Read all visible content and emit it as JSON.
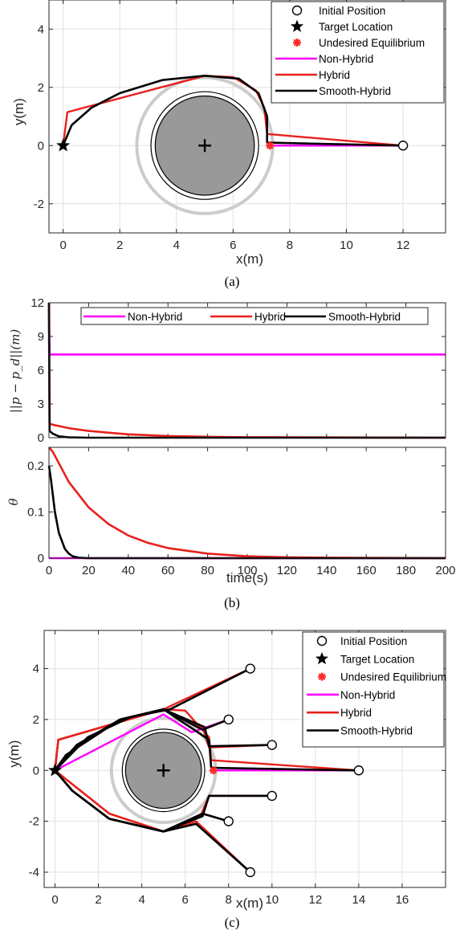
{
  "colors": {
    "nonhybrid": "#ff00ff",
    "hybrid": "#e8201c",
    "smooth": "#000000",
    "obstacle_fill": "#999999",
    "halo": "#cccccc",
    "equilibrium": "#ff2a2a"
  },
  "legend": {
    "initial": "Initial Position",
    "target": "Target Location",
    "undesired": "Undesired Equilibrium",
    "nonhybrid": "Non-Hybrid",
    "hybrid": "Hybrid",
    "smooth": "Smooth-Hybrid"
  },
  "captions": {
    "a": "(a)",
    "b": "(b)",
    "c": "(c)"
  },
  "chart_data": [
    {
      "type": "line",
      "panel": "a",
      "xlabel": "x(m)",
      "ylabel": "y(m)",
      "xlim": [
        -0.5,
        13.5
      ],
      "ylim": [
        -3,
        5
      ],
      "xticks": [
        "0",
        "2",
        "4",
        "6",
        "8",
        "10",
        "12"
      ],
      "yticks": [
        "-2",
        "0",
        "2",
        "4"
      ],
      "obstacle": {
        "center": [
          5,
          0
        ],
        "radius": 1.9,
        "inner_ring": 1.75,
        "halo_radius": 2.4
      },
      "initial_positions": [
        [
          12,
          0
        ]
      ],
      "target": [
        0,
        0
      ],
      "undesired_equilibrium": [
        7.3,
        0
      ],
      "series": [
        {
          "name": "Non-Hybrid",
          "points": [
            [
              12,
              0
            ],
            [
              7.3,
              0
            ]
          ]
        },
        {
          "name": "Hybrid",
          "points": [
            [
              12,
              0
            ],
            [
              7.2,
              0.4
            ],
            [
              7.1,
              1.3
            ],
            [
              6.8,
              1.9
            ],
            [
              6.0,
              2.35
            ],
            [
              5.0,
              2.4
            ],
            [
              0.15,
              1.15
            ],
            [
              0,
              0
            ]
          ]
        },
        {
          "name": "Smooth-Hybrid",
          "points": [
            [
              12,
              0
            ],
            [
              7.2,
              0.1
            ],
            [
              7.2,
              1.0
            ],
            [
              6.9,
              1.8
            ],
            [
              6.2,
              2.3
            ],
            [
              5.0,
              2.4
            ],
            [
              3.5,
              2.25
            ],
            [
              2.0,
              1.8
            ],
            [
              1.0,
              1.3
            ],
            [
              0.3,
              0.7
            ],
            [
              0,
              0
            ]
          ]
        }
      ]
    },
    {
      "type": "line",
      "panel": "b-top",
      "ylabel": "||p − p_d||(m)",
      "xlim": [
        0,
        200
      ],
      "ylim": [
        0,
        12
      ],
      "yticks": [
        "0",
        "3",
        "6",
        "9",
        "12"
      ],
      "series": [
        {
          "name": "Non-Hybrid",
          "x": [
            0,
            0.3,
            200
          ],
          "values": [
            12,
            7.4,
            7.4
          ]
        },
        {
          "name": "Hybrid",
          "x": [
            0,
            0.3,
            2,
            10,
            20,
            40,
            60,
            80,
            100,
            200
          ],
          "values": [
            12,
            1.25,
            1.15,
            0.85,
            0.6,
            0.3,
            0.15,
            0.08,
            0.04,
            0
          ]
        },
        {
          "name": "Smooth-Hybrid",
          "x": [
            0,
            0.3,
            2,
            5,
            10,
            20,
            200
          ],
          "values": [
            12,
            0.6,
            0.35,
            0.12,
            0.03,
            0,
            0
          ]
        }
      ]
    },
    {
      "type": "line",
      "panel": "b-bottom",
      "xlabel": "time(s)",
      "ylabel": "θ",
      "xlim": [
        0,
        200
      ],
      "ylim": [
        0,
        0.24
      ],
      "xticks": [
        "0",
        "20",
        "40",
        "60",
        "80",
        "100",
        "120",
        "140",
        "160",
        "180",
        "200"
      ],
      "yticks": [
        "0",
        "0.1",
        "0.2"
      ],
      "series": [
        {
          "name": "Non-Hybrid",
          "x": [
            0,
            200
          ],
          "values": [
            0,
            0
          ]
        },
        {
          "name": "Hybrid",
          "x": [
            0,
            2,
            10,
            20,
            30,
            40,
            50,
            60,
            80,
            100,
            120,
            140,
            200
          ],
          "values": [
            0.24,
            0.23,
            0.165,
            0.11,
            0.074,
            0.049,
            0.033,
            0.022,
            0.01,
            0.004,
            0.002,
            0.001,
            0
          ]
        },
        {
          "name": "Smooth-Hybrid",
          "x": [
            0,
            1,
            3,
            5,
            8,
            10,
            12,
            15,
            20,
            200
          ],
          "values": [
            0.2,
            0.17,
            0.1,
            0.055,
            0.02,
            0.01,
            0.004,
            0.001,
            0,
            0
          ]
        }
      ]
    },
    {
      "type": "line",
      "panel": "c",
      "xlabel": "x(m)",
      "ylabel": "y(m)",
      "xlim": [
        -0.5,
        18
      ],
      "ylim": [
        -4.6,
        5.5
      ],
      "xticks": [
        "0",
        "2",
        "4",
        "6",
        "8",
        "10",
        "12",
        "14",
        "16"
      ],
      "yticks": [
        "-4",
        "-2",
        "0",
        "2",
        "4"
      ],
      "obstacle": {
        "center": [
          5,
          0
        ],
        "radius": 1.9,
        "inner_ring": 1.75,
        "halo_radius": 2.4
      },
      "initial_positions": [
        [
          9,
          4
        ],
        [
          8,
          2
        ],
        [
          10,
          1
        ],
        [
          14,
          0
        ],
        [
          10,
          -1
        ],
        [
          8,
          -2
        ],
        [
          9,
          -4
        ]
      ],
      "target": [
        0,
        0
      ],
      "undesired_equilibrium": [
        7.3,
        0
      ],
      "series": [
        {
          "name": "Non-Hybrid",
          "points": [
            [
              14,
              0
            ],
            [
              7.3,
              0
            ]
          ]
        },
        {
          "name": "Non-Hybrid",
          "points": [
            [
              8,
              2
            ],
            [
              6.3,
              1.5
            ],
            [
              5.0,
              2.2
            ],
            [
              0,
              0
            ]
          ]
        },
        {
          "name": "Hybrid",
          "points": [
            [
              9,
              4
            ],
            [
              5.0,
              2.4
            ],
            [
              0.15,
              1.2
            ],
            [
              0,
              0
            ]
          ]
        },
        {
          "name": "Hybrid",
          "points": [
            [
              8,
              2
            ],
            [
              6.8,
              1.6
            ],
            [
              5.0,
              2.4
            ],
            [
              0.15,
              1.2
            ],
            [
              0,
              0
            ]
          ]
        },
        {
          "name": "Hybrid",
          "points": [
            [
              10,
              1
            ],
            [
              7.1,
              0.9
            ],
            [
              6.8,
              1.7
            ],
            [
              5.0,
              2.4
            ],
            [
              0.15,
              1.2
            ],
            [
              0,
              0
            ]
          ]
        },
        {
          "name": "Hybrid",
          "points": [
            [
              14,
              0
            ],
            [
              7.2,
              0.4
            ],
            [
              7.1,
              1.3
            ],
            [
              6.0,
              2.35
            ],
            [
              5.0,
              2.4
            ],
            [
              0.15,
              1.2
            ],
            [
              0,
              0
            ]
          ]
        },
        {
          "name": "Hybrid",
          "points": [
            [
              10,
              -1
            ],
            [
              7.1,
              -1.0
            ],
            [
              6.7,
              -1.8
            ],
            [
              5.0,
              -2.4
            ],
            [
              2.5,
              -1.7
            ],
            [
              0,
              0
            ]
          ]
        },
        {
          "name": "Hybrid",
          "points": [
            [
              8,
              -2
            ],
            [
              6.8,
              -1.7
            ],
            [
              5.0,
              -2.4
            ],
            [
              2.5,
              -1.7
            ],
            [
              0,
              0
            ]
          ]
        },
        {
          "name": "Hybrid",
          "points": [
            [
              9,
              -4
            ],
            [
              6.5,
              -2.0
            ],
            [
              5.0,
              -2.4
            ],
            [
              2.5,
              -1.7
            ],
            [
              0,
              0
            ]
          ]
        },
        {
          "name": "Smooth-Hybrid",
          "points": [
            [
              9,
              4
            ],
            [
              5.3,
              2.4
            ],
            [
              3.5,
              2.1
            ],
            [
              1.5,
              1.3
            ],
            [
              0,
              0
            ]
          ]
        },
        {
          "name": "Smooth-Hybrid",
          "points": [
            [
              8,
              2
            ],
            [
              6.8,
              1.6
            ],
            [
              5.0,
              2.4
            ],
            [
              3.0,
              2.0
            ],
            [
              1.0,
              1.0
            ],
            [
              0,
              0
            ]
          ]
        },
        {
          "name": "Smooth-Hybrid",
          "points": [
            [
              10,
              1
            ],
            [
              7.1,
              0.95
            ],
            [
              6.9,
              1.7
            ],
            [
              5.0,
              2.4
            ],
            [
              3.0,
              2.0
            ],
            [
              0.8,
              0.8
            ],
            [
              0,
              0
            ]
          ]
        },
        {
          "name": "Smooth-Hybrid",
          "points": [
            [
              14,
              0
            ],
            [
              7.2,
              0.1
            ],
            [
              7.1,
              1.2
            ],
            [
              5.0,
              2.4
            ],
            [
              3.0,
              2.0
            ],
            [
              0.5,
              0.6
            ],
            [
              0,
              0
            ]
          ]
        },
        {
          "name": "Smooth-Hybrid",
          "points": [
            [
              10,
              -1
            ],
            [
              7.1,
              -1.0
            ],
            [
              6.8,
              -1.8
            ],
            [
              5.0,
              -2.4
            ],
            [
              2.5,
              -1.9
            ],
            [
              0.8,
              -0.8
            ],
            [
              0,
              0
            ]
          ]
        },
        {
          "name": "Smooth-Hybrid",
          "points": [
            [
              8,
              -2
            ],
            [
              6.8,
              -1.7
            ],
            [
              5.0,
              -2.4
            ],
            [
              2.5,
              -1.9
            ],
            [
              0.8,
              -0.8
            ],
            [
              0,
              0
            ]
          ]
        },
        {
          "name": "Smooth-Hybrid",
          "points": [
            [
              9,
              -4
            ],
            [
              6.5,
              -2.1
            ],
            [
              5.0,
              -2.4
            ],
            [
              2.5,
              -1.9
            ],
            [
              0.8,
              -0.8
            ],
            [
              0,
              0
            ]
          ]
        }
      ]
    }
  ]
}
